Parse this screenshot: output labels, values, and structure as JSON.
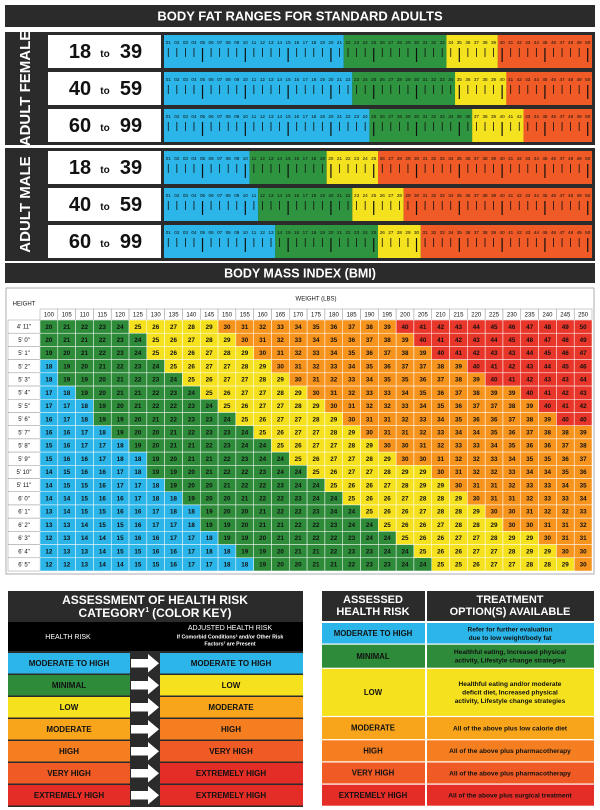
{
  "body_fat": {
    "title": "BODY FAT RANGES FOR STANDARD ADULTS",
    "scale": [
      "01",
      "02",
      "03",
      "04",
      "05",
      "06",
      "07",
      "08",
      "09",
      "10",
      "11",
      "12",
      "13",
      "14",
      "15",
      "16",
      "17",
      "18",
      "19",
      "20",
      "21",
      "22",
      "23",
      "24",
      "25",
      "26",
      "27",
      "28",
      "29",
      "30",
      "31",
      "32",
      "33",
      "34",
      "35",
      "36",
      "37",
      "38",
      "39",
      "40",
      "41",
      "42",
      "43",
      "44",
      "45",
      "46",
      "47",
      "48",
      "49",
      "50"
    ],
    "zone_colors": [
      "#2bb5e8",
      "#2e9440",
      "#f5e21e",
      "#ef5a26"
    ],
    "groups": [
      {
        "label": "ADULT FEMALE",
        "rows": [
          {
            "from": "18",
            "sep": "to",
            "to": "39",
            "zones": [
              22,
              34,
              40
            ]
          },
          {
            "from": "40",
            "sep": "to",
            "to": "59",
            "zones": [
              23,
              35,
              41
            ]
          },
          {
            "from": "60",
            "sep": "to",
            "to": "99",
            "zones": [
              25,
              37,
              43
            ]
          }
        ]
      },
      {
        "label": "ADULT MALE",
        "rows": [
          {
            "from": "18",
            "sep": "to",
            "to": "39",
            "zones": [
              11,
              20,
              26
            ]
          },
          {
            "from": "40",
            "sep": "to",
            "to": "59",
            "zones": [
              12,
              23,
              29
            ]
          },
          {
            "from": "60",
            "sep": "to",
            "to": "99",
            "zones": [
              14,
              26,
              31
            ]
          }
        ]
      }
    ]
  },
  "bmi": {
    "title": "BODY MASS INDEX (BMI)",
    "height_label": "HEIGHT",
    "weight_label": "WEIGHT (LBS)",
    "weights": [
      100,
      105,
      110,
      115,
      120,
      125,
      130,
      135,
      140,
      145,
      150,
      155,
      160,
      165,
      170,
      175,
      180,
      185,
      190,
      195,
      200,
      205,
      210,
      215,
      220,
      225,
      230,
      235,
      240,
      245,
      250
    ],
    "heights": [
      "4' 11\"",
      "5' 0\"",
      "5' 1\"",
      "5' 2\"",
      "5' 3\"",
      "5' 4\"",
      "5' 5\"",
      "5' 6\"",
      "5' 7\"",
      "5' 8\"",
      "5' 9\"",
      "5' 10\"",
      "5' 11\"",
      "6' 0\"",
      "6' 1\"",
      "6' 2\"",
      "6' 3\"",
      "6' 4\"",
      "6' 5\""
    ],
    "rows": [
      [
        20,
        21,
        22,
        23,
        24,
        25,
        26,
        27,
        28,
        29,
        30,
        31,
        32,
        33,
        34,
        35,
        36,
        37,
        38,
        39,
        40,
        41,
        42,
        43,
        44,
        45,
        46,
        47,
        48,
        49,
        50
      ],
      [
        20,
        21,
        21,
        22,
        23,
        24,
        25,
        26,
        27,
        28,
        29,
        30,
        31,
        32,
        33,
        34,
        35,
        36,
        37,
        38,
        39,
        40,
        41,
        42,
        43,
        44,
        45,
        46,
        47,
        48,
        49
      ],
      [
        19,
        20,
        21,
        22,
        23,
        24,
        25,
        26,
        26,
        27,
        28,
        29,
        30,
        31,
        32,
        33,
        34,
        35,
        36,
        37,
        38,
        39,
        40,
        41,
        42,
        43,
        43,
        44,
        45,
        46,
        47
      ],
      [
        18,
        19,
        20,
        21,
        22,
        23,
        24,
        25,
        26,
        27,
        27,
        28,
        29,
        30,
        31,
        32,
        33,
        34,
        35,
        36,
        37,
        37,
        38,
        39,
        40,
        41,
        42,
        43,
        44,
        45,
        46
      ],
      [
        18,
        19,
        19,
        20,
        21,
        22,
        23,
        24,
        25,
        26,
        27,
        27,
        28,
        29,
        30,
        31,
        32,
        33,
        34,
        35,
        35,
        36,
        37,
        38,
        39,
        40,
        41,
        42,
        43,
        43,
        44
      ],
      [
        17,
        18,
        19,
        20,
        21,
        21,
        22,
        23,
        24,
        25,
        26,
        27,
        27,
        28,
        29,
        30,
        31,
        32,
        33,
        33,
        34,
        35,
        36,
        37,
        38,
        39,
        39,
        40,
        41,
        42,
        43
      ],
      [
        17,
        17,
        18,
        19,
        20,
        21,
        22,
        22,
        23,
        24,
        25,
        26,
        27,
        27,
        28,
        29,
        30,
        31,
        32,
        32,
        33,
        34,
        35,
        36,
        37,
        37,
        38,
        39,
        40,
        41,
        42
      ],
      [
        16,
        17,
        18,
        19,
        19,
        20,
        21,
        22,
        23,
        23,
        24,
        25,
        26,
        27,
        27,
        28,
        29,
        30,
        31,
        31,
        32,
        33,
        34,
        35,
        36,
        36,
        37,
        38,
        39,
        40,
        40
      ],
      [
        16,
        16,
        17,
        18,
        19,
        20,
        20,
        21,
        22,
        23,
        23,
        24,
        25,
        26,
        27,
        27,
        28,
        29,
        30,
        31,
        31,
        32,
        33,
        34,
        34,
        35,
        36,
        37,
        38,
        38,
        39
      ],
      [
        15,
        16,
        17,
        17,
        18,
        19,
        20,
        21,
        21,
        22,
        23,
        24,
        24,
        25,
        26,
        27,
        27,
        28,
        29,
        30,
        30,
        31,
        32,
        33,
        33,
        34,
        35,
        36,
        36,
        37,
        38
      ],
      [
        15,
        16,
        16,
        17,
        18,
        18,
        19,
        20,
        21,
        21,
        22,
        23,
        24,
        24,
        25,
        26,
        27,
        27,
        28,
        29,
        30,
        30,
        31,
        32,
        32,
        33,
        34,
        35,
        35,
        36,
        37
      ],
      [
        14,
        15,
        16,
        16,
        17,
        18,
        19,
        19,
        20,
        21,
        22,
        22,
        23,
        24,
        24,
        25,
        26,
        27,
        27,
        28,
        29,
        29,
        30,
        31,
        32,
        32,
        33,
        34,
        34,
        35,
        36
      ],
      [
        14,
        15,
        15,
        16,
        17,
        17,
        18,
        19,
        20,
        20,
        21,
        22,
        22,
        23,
        24,
        24,
        25,
        26,
        26,
        27,
        28,
        29,
        29,
        30,
        31,
        31,
        32,
        33,
        33,
        34,
        35
      ],
      [
        14,
        14,
        15,
        16,
        16,
        17,
        18,
        18,
        19,
        20,
        20,
        21,
        22,
        22,
        23,
        24,
        24,
        25,
        26,
        26,
        27,
        28,
        28,
        29,
        30,
        31,
        31,
        32,
        33,
        33,
        34
      ],
      [
        13,
        14,
        15,
        15,
        16,
        16,
        17,
        18,
        18,
        19,
        20,
        20,
        21,
        22,
        22,
        23,
        24,
        24,
        25,
        26,
        26,
        27,
        28,
        28,
        29,
        30,
        30,
        31,
        32,
        32,
        33
      ],
      [
        13,
        13,
        14,
        15,
        15,
        16,
        17,
        17,
        18,
        19,
        19,
        20,
        21,
        21,
        22,
        22,
        23,
        24,
        24,
        25,
        26,
        26,
        27,
        28,
        28,
        29,
        30,
        30,
        31,
        31,
        32
      ],
      [
        12,
        13,
        14,
        14,
        15,
        16,
        16,
        17,
        17,
        18,
        19,
        19,
        20,
        21,
        21,
        22,
        22,
        23,
        24,
        24,
        25,
        26,
        26,
        27,
        27,
        28,
        29,
        29,
        30,
        31,
        31
      ],
      [
        12,
        13,
        13,
        14,
        15,
        15,
        16,
        16,
        17,
        18,
        18,
        19,
        19,
        20,
        21,
        21,
        22,
        23,
        23,
        24,
        24,
        25,
        26,
        26,
        27,
        27,
        28,
        29,
        29,
        30,
        30
      ],
      [
        12,
        12,
        13,
        14,
        14,
        15,
        15,
        16,
        17,
        17,
        18,
        18,
        19,
        20,
        20,
        21,
        21,
        22,
        23,
        23,
        24,
        24,
        25,
        25,
        26,
        27,
        27,
        28,
        28,
        29,
        30
      ]
    ],
    "color_bands": [
      {
        "from": 0,
        "color": "#2bb5e8"
      },
      {
        "from": 19,
        "color": "#2e8b3a"
      },
      {
        "from": 25,
        "color": "#f6e11f"
      },
      {
        "from": 30,
        "color": "#f7941d"
      },
      {
        "from": 40,
        "color": "#e8362a"
      }
    ]
  },
  "risk_key": {
    "title_line1": "ASSESSMENT OF HEALTH RISK",
    "title_a": "CATEGORY",
    "title_sup": "1",
    "title_b": "(COLOR KEY)",
    "col1": "HEALTH RISK",
    "col2": "ADJUSTED HEALTH RISK",
    "col2_note": [
      "If Comorbid Conditions² and/or Other Risk",
      "Factors³ are Present"
    ],
    "rows": [
      {
        "risk": "MODERATE TO HIGH",
        "color": "#2bb5e8",
        "adjusted": "MODERATE TO HIGH",
        "adjusted_color": "#2bb5e8"
      },
      {
        "risk": "MINIMAL",
        "color": "#2e8b3a",
        "adjusted": "LOW",
        "adjusted_color": "#f6e11f"
      },
      {
        "risk": "LOW",
        "color": "#f6e11f",
        "adjusted": "MODERATE",
        "adjusted_color": "#f8a51c"
      },
      {
        "risk": "MODERATE",
        "color": "#f8a51c",
        "adjusted": "HIGH",
        "adjusted_color": "#f57f20"
      },
      {
        "risk": "HIGH",
        "color": "#f57f20",
        "adjusted": "VERY HIGH",
        "adjusted_color": "#f05a24"
      },
      {
        "risk": "VERY HIGH",
        "color": "#f05a24",
        "adjusted": "EXTREMELY HIGH",
        "adjusted_color": "#e52d27"
      },
      {
        "risk": "EXTREMELY HIGH",
        "color": "#e52d27",
        "adjusted": "EXTREMELY HIGH",
        "adjusted_color": "#e52d27"
      }
    ]
  },
  "treatment": {
    "col1": [
      "ASSESSED",
      "HEALTH RISK"
    ],
    "col2": [
      "TREATMENT",
      "OPTION(S) AVAILABLE"
    ],
    "rows": [
      {
        "risk": "MODERATE TO HIGH",
        "color": "#2bb5e8",
        "option": [
          "Refer for further evaluation",
          "due to low weight/body fat"
        ]
      },
      {
        "risk": "MINIMAL",
        "color": "#2e8b3a",
        "option": [
          "Healthful eating, Increased physical",
          "activity, Lifestyle change strategies"
        ]
      },
      {
        "risk": "LOW",
        "color": "#f6e11f",
        "option": [
          "Healthful eating and/or moderate",
          "deficit diet, Increased physical",
          "activity, Lifestyle change strategies"
        ]
      },
      {
        "risk": "MODERATE",
        "color": "#f8a51c",
        "option": [
          "All of the above plus low calorie diet"
        ]
      },
      {
        "risk": "HIGH",
        "color": "#f57f20",
        "option": [
          "All of the above plus pharmacotherapy"
        ]
      },
      {
        "risk": "VERY HIGH",
        "color": "#f05a24",
        "option": [
          "All of the above plus pharmacotherapy"
        ]
      },
      {
        "risk": "EXTREMELY HIGH",
        "color": "#e52d27",
        "option": [
          "All of the above plus surgical treatment"
        ]
      }
    ]
  }
}
